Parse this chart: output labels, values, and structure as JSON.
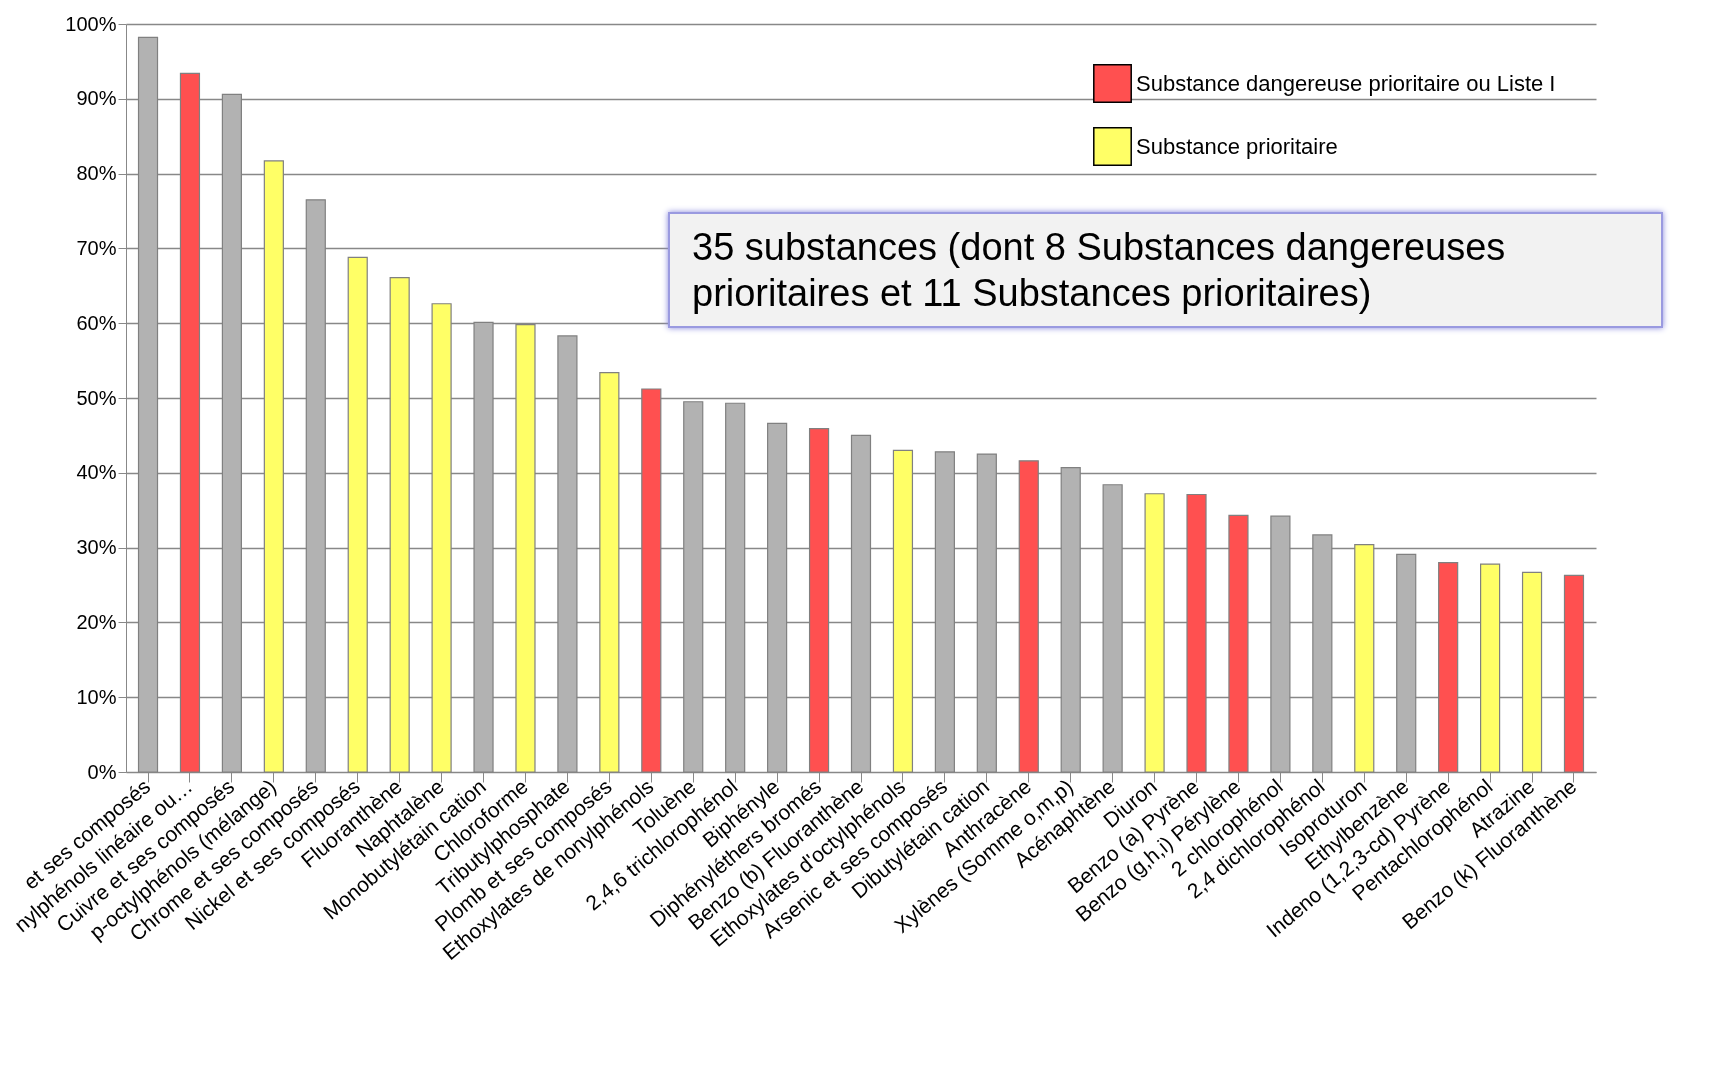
{
  "chart_data": {
    "type": "bar",
    "categories": [
      "et ses composés",
      "nylphénols linéaire ou…",
      "Cuivre et ses composés",
      "p-octylphénols (mélange)",
      "Chrome et ses composés",
      "Nickel et ses composés",
      "Fluoranthène",
      "Naphtalène",
      "Monobutylétain cation",
      "Chloroforme",
      "Tributylphosphate",
      "Plomb et ses composés",
      "Ethoxylates de nonylphénols",
      "Toluène",
      "2,4,6 trichlorophénol",
      "Biphényle",
      "Diphényléthers bromés",
      "Benzo (b) Fluoranthène",
      "Ethoxylates d'octylphénols",
      "Arsenic et ses composés",
      "Dibutylétain cation",
      "Anthracène",
      "Xylènes (Somme o,m,p)",
      "Acénaphtène",
      "Diuron",
      "Benzo (a) Pyrène",
      "Benzo (g,h,i) Pérylène",
      "2 chlorophénol",
      "2,4 dichlorophénol",
      "Isoproturon",
      "Ethylbenzène",
      "Indeno (1,2,3-cd) Pyrène",
      "Pentachlorophénol",
      "Atrazine",
      "Benzo (k) Fluoranthène"
    ],
    "series": [
      {
        "color": "#b2b2b2",
        "values": [
          98.2,
          null,
          90.6,
          null,
          76.5,
          null,
          null,
          null,
          60.1,
          null,
          58.3,
          null,
          null,
          49.5,
          49.3,
          46.6,
          null,
          45.0,
          null,
          42.8,
          42.5,
          null,
          40.7,
          38.4,
          null,
          null,
          null,
          34.2,
          31.7,
          null,
          29.1,
          null,
          null,
          null,
          null
        ]
      },
      {
        "name": "Substance dangereuse prioritaire ou Liste I",
        "color": "#ff5050",
        "values": [
          null,
          93.4,
          null,
          null,
          null,
          null,
          null,
          null,
          null,
          null,
          null,
          null,
          51.2,
          null,
          null,
          null,
          45.9,
          null,
          null,
          null,
          null,
          41.6,
          null,
          null,
          null,
          37.1,
          34.3,
          null,
          null,
          null,
          null,
          28.0,
          null,
          null,
          26.3
        ]
      },
      {
        "name": "Substance prioritaire",
        "color": "#ffff66",
        "values": [
          null,
          null,
          null,
          81.7,
          null,
          68.8,
          66.1,
          62.6,
          null,
          59.8,
          null,
          53.4,
          null,
          null,
          null,
          null,
          null,
          null,
          43.0,
          null,
          null,
          null,
          null,
          null,
          37.2,
          null,
          null,
          null,
          null,
          30.4,
          null,
          null,
          27.8,
          26.7,
          null
        ]
      }
    ],
    "ylim": [
      0,
      100
    ],
    "yticks": [
      {
        "value": 0,
        "label": "0%"
      },
      {
        "value": 10,
        "label": "10%"
      },
      {
        "value": 20,
        "label": "20%"
      },
      {
        "value": 30,
        "label": "30%"
      },
      {
        "value": 40,
        "label": "40%"
      },
      {
        "value": 50,
        "label": "50%"
      },
      {
        "value": 60,
        "label": "60%"
      },
      {
        "value": 70,
        "label": "70%"
      },
      {
        "value": 80,
        "label": "80%"
      },
      {
        "value": 90,
        "label": "90%"
      },
      {
        "value": 100,
        "label": "100%"
      }
    ],
    "grid": "y",
    "legend": "top right",
    "annotations": [
      "35 substances (dont 8 Substances dangereuses prioritaires et 11 Substances prioritaires)"
    ]
  }
}
